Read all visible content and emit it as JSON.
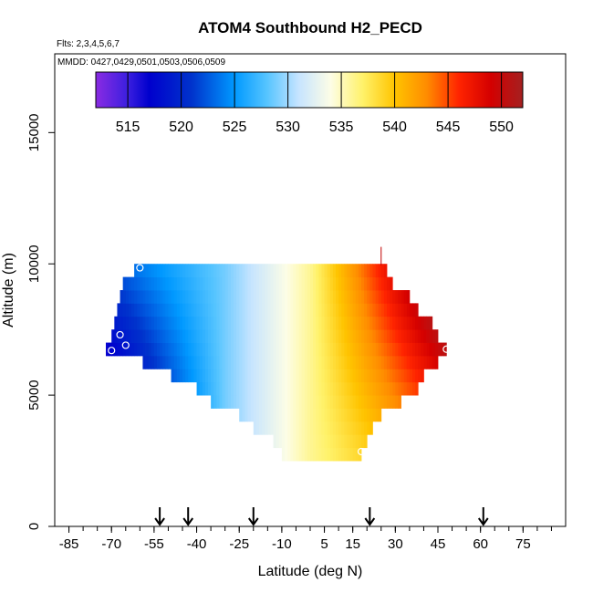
{
  "chart_data": {
    "type": "heatmap",
    "title": "ATOM4 Southbound H2_PECD",
    "flights_note": "Flts: 2,3,4,5,6,7",
    "dates_note": "MMDD: 0427,0429,0501,0503,0506,0509",
    "xlabel": "Latitude (deg N)",
    "ylabel": "Altitude (m)",
    "xlim": [
      -90,
      90
    ],
    "ylim": [
      0,
      18000
    ],
    "x_ticks": [
      -85,
      -70,
      -55,
      -40,
      -25,
      -10,
      5,
      15,
      30,
      45,
      60,
      75
    ],
    "x_tick_labels": [
      "-85",
      "-70",
      "-55",
      "-40",
      "-25",
      "-10",
      "5",
      "15",
      "30",
      "45",
      "60",
      "75"
    ],
    "y_ticks": [
      0,
      5000,
      10000,
      15000
    ],
    "y_tick_labels": [
      "0",
      "5000",
      "10000",
      "15000"
    ],
    "colorbar": {
      "min": 512,
      "max": 552,
      "ticks": [
        515,
        520,
        525,
        530,
        535,
        540,
        545,
        550
      ],
      "tick_labels": [
        "515",
        "520",
        "525",
        "530",
        "535",
        "540",
        "545",
        "550"
      ],
      "stops": [
        {
          "v": 512,
          "c": "#8a2be2"
        },
        {
          "v": 515,
          "c": "#3b1fe0"
        },
        {
          "v": 517,
          "c": "#0000cd"
        },
        {
          "v": 521,
          "c": "#0033cc"
        },
        {
          "v": 525,
          "c": "#0099ff"
        },
        {
          "v": 528,
          "c": "#55c4ff"
        },
        {
          "v": 531,
          "c": "#c6e4ff"
        },
        {
          "v": 534,
          "c": "#fdfde6"
        },
        {
          "v": 537,
          "c": "#fff26a"
        },
        {
          "v": 540,
          "c": "#ffc400"
        },
        {
          "v": 543,
          "c": "#ff8c00"
        },
        {
          "v": 546,
          "c": "#ff2400"
        },
        {
          "v": 549,
          "c": "#d40000"
        },
        {
          "v": 552,
          "c": "#a52020"
        }
      ]
    },
    "field": {
      "alt_bins": [
        {
          "alt": 2750,
          "lat_min": -10,
          "lat_max": 18
        },
        {
          "alt": 3250,
          "lat_min": -13,
          "lat_max": 20
        },
        {
          "alt": 3750,
          "lat_min": -20,
          "lat_max": 22
        },
        {
          "alt": 4250,
          "lat_min": -25,
          "lat_max": 25
        },
        {
          "alt": 4750,
          "lat_min": -35,
          "lat_max": 32
        },
        {
          "alt": 5250,
          "lat_min": -40,
          "lat_max": 38
        },
        {
          "alt": 5750,
          "lat_min": -49,
          "lat_max": 40
        },
        {
          "alt": 6250,
          "lat_min": -59,
          "lat_max": 45
        },
        {
          "alt": 6750,
          "lat_min": -72,
          "lat_max": 48
        },
        {
          "alt": 7250,
          "lat_min": -70,
          "lat_max": 45
        },
        {
          "alt": 7750,
          "lat_min": -69,
          "lat_max": 43
        },
        {
          "alt": 8250,
          "lat_min": -68,
          "lat_max": 38
        },
        {
          "alt": 8750,
          "lat_min": -67,
          "lat_max": 35
        },
        {
          "alt": 9250,
          "lat_min": -66,
          "lat_max": 29
        },
        {
          "alt": 9750,
          "lat_min": -62,
          "lat_max": 27
        }
      ],
      "model": {
        "base": 536,
        "lat_slope": 0.24,
        "upper_alt_slope": 0.0015,
        "upper_ref_alt": 5000,
        "upper_lat_threshold": 0,
        "lower_alt_slope": 0.0016,
        "lower_ref_alt": 8000,
        "lower_lat_threshold": -30
      }
    },
    "points": [
      {
        "lat": -70,
        "alt": 6700
      },
      {
        "lat": -65,
        "alt": 6900
      },
      {
        "lat": -67,
        "alt": 7300
      },
      {
        "lat": -60,
        "alt": 9850
      },
      {
        "lat": 18,
        "alt": 2850
      },
      {
        "lat": 48,
        "alt": 6750
      }
    ],
    "flight_marks": [
      {
        "lat": 25,
        "alt": 10300
      }
    ],
    "arrows": [
      -53,
      -43,
      -20,
      21,
      61
    ]
  }
}
